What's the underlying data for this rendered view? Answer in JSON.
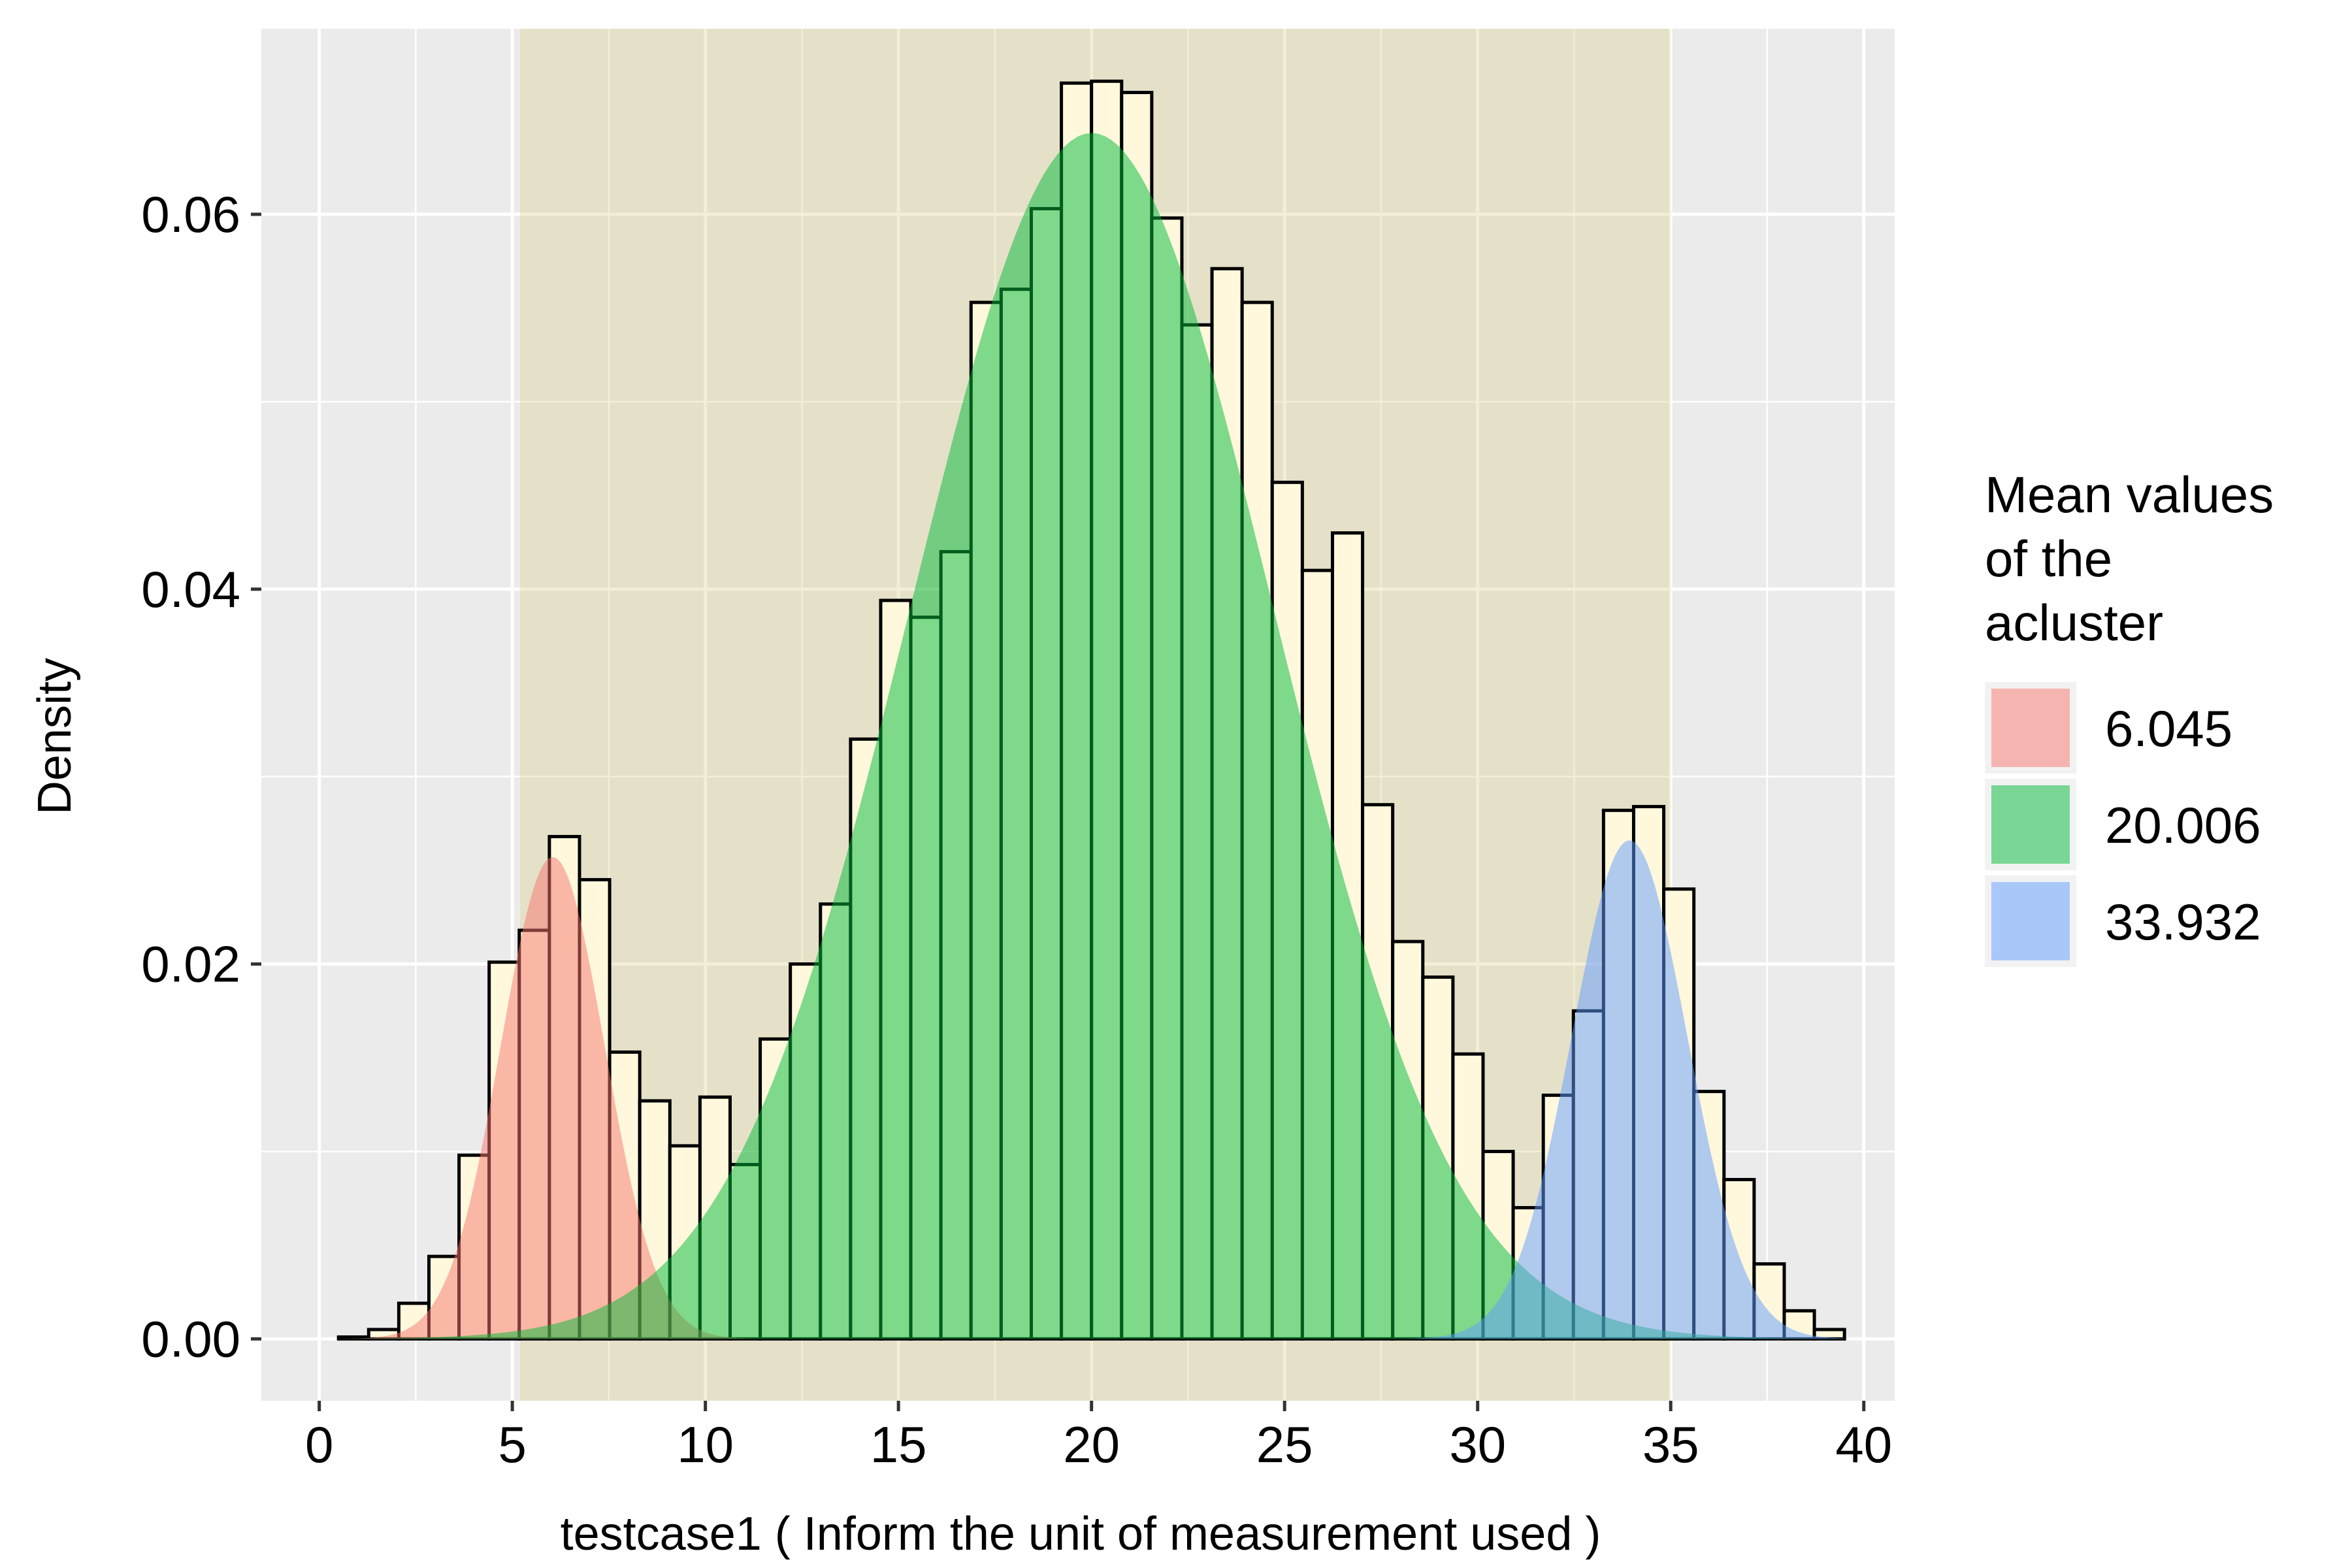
{
  "chart_data": {
    "type": "bar",
    "subtype": "histogram with fitted normal density curves",
    "xlabel": "testcase1 ( Inform the unit of measurement used )",
    "ylabel": "Density",
    "xlim": [
      -1.5,
      40.8
    ],
    "ylim": [
      -0.0033,
      0.0699
    ],
    "x_ticks": [
      0,
      5,
      10,
      15,
      20,
      25,
      30,
      35,
      40
    ],
    "x_tick_labels": [
      "0",
      "5",
      "10",
      "15",
      "20",
      "25",
      "30",
      "35",
      "40"
    ],
    "y_ticks": [
      0.0,
      0.02,
      0.04,
      0.06
    ],
    "y_tick_labels": [
      "0.00",
      "0.02",
      "0.04",
      "0.06"
    ],
    "grid": true,
    "highlight_band": {
      "x_from": 5.2,
      "x_to": 35.0,
      "color": "#EBE5C6"
    },
    "histogram": {
      "bin_width": 0.78,
      "bin_start": 0.5,
      "fill": "#FFF8DC",
      "stroke": "#000000",
      "density": [
        0.0001,
        0.0005,
        0.0019,
        0.0044,
        0.0098,
        0.0201,
        0.0218,
        0.0268,
        0.0245,
        0.0153,
        0.0127,
        0.0103,
        0.0129,
        0.0093,
        0.016,
        0.02,
        0.0232,
        0.032,
        0.0394,
        0.0385,
        0.042,
        0.0553,
        0.056,
        0.0603,
        0.067,
        0.0671,
        0.0665,
        0.0598,
        0.0541,
        0.0571,
        0.0553,
        0.0457,
        0.041,
        0.043,
        0.0285,
        0.0212,
        0.0193,
        0.0152,
        0.01,
        0.007,
        0.013,
        0.0175,
        0.0282,
        0.0284,
        0.024,
        0.0132,
        0.0085,
        0.004,
        0.0015,
        0.0005
      ]
    },
    "series": [
      {
        "name": "6.045",
        "mean": 6.045,
        "sd": 1.35,
        "weight": 0.087,
        "color": "#F8766D"
      },
      {
        "name": "20.006",
        "mean": 20.006,
        "sd": 4.7,
        "weight": 0.758,
        "color": "#00BA38"
      },
      {
        "name": "33.932",
        "mean": 33.932,
        "sd": 1.5,
        "weight": 0.1,
        "color": "#619CFF"
      }
    ],
    "legend": {
      "title": "Mean values\nof the\nacluster",
      "title_lines": [
        "Mean values",
        "of the",
        "acluster"
      ],
      "position": "right",
      "items": [
        {
          "label": " 6.045",
          "color": "#F8766D"
        },
        {
          "label": "20.006",
          "color": "#00BA38"
        },
        {
          "label": "33.932",
          "color": "#619CFF"
        }
      ]
    },
    "colors": {
      "panel_background": "#EBEBEB",
      "grid": "#FFFFFF"
    }
  }
}
